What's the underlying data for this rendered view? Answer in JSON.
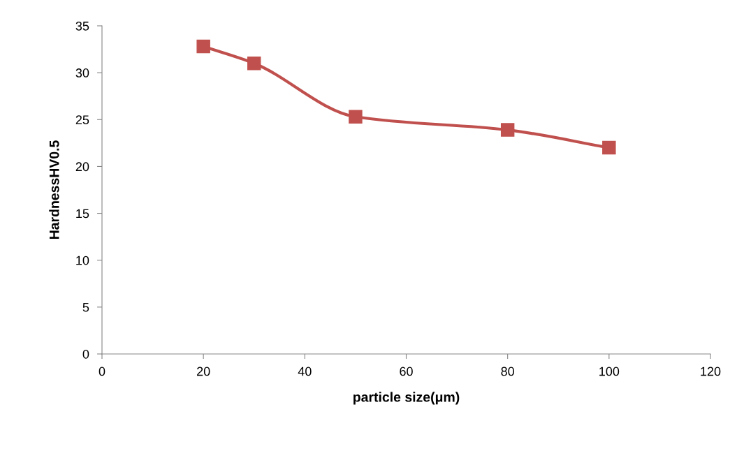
{
  "chart_data": {
    "type": "line",
    "xlabel": "particle size(μm)",
    "ylabel": "HardnessHV0.5",
    "x": [
      20,
      30,
      50,
      80,
      100
    ],
    "series": [
      {
        "color": "#c0504d",
        "values": [
          32.8,
          31.0,
          25.3,
          23.9,
          22.0
        ]
      }
    ],
    "xlim": [
      0,
      120
    ],
    "xticks": [
      0,
      20,
      40,
      60,
      80,
      100,
      120
    ],
    "ylim": [
      0,
      35
    ],
    "yticks": [
      0,
      5,
      10,
      15,
      20,
      25,
      30,
      35
    ],
    "marker": "square",
    "line_style": "solid",
    "grid": false,
    "legend": false
  }
}
